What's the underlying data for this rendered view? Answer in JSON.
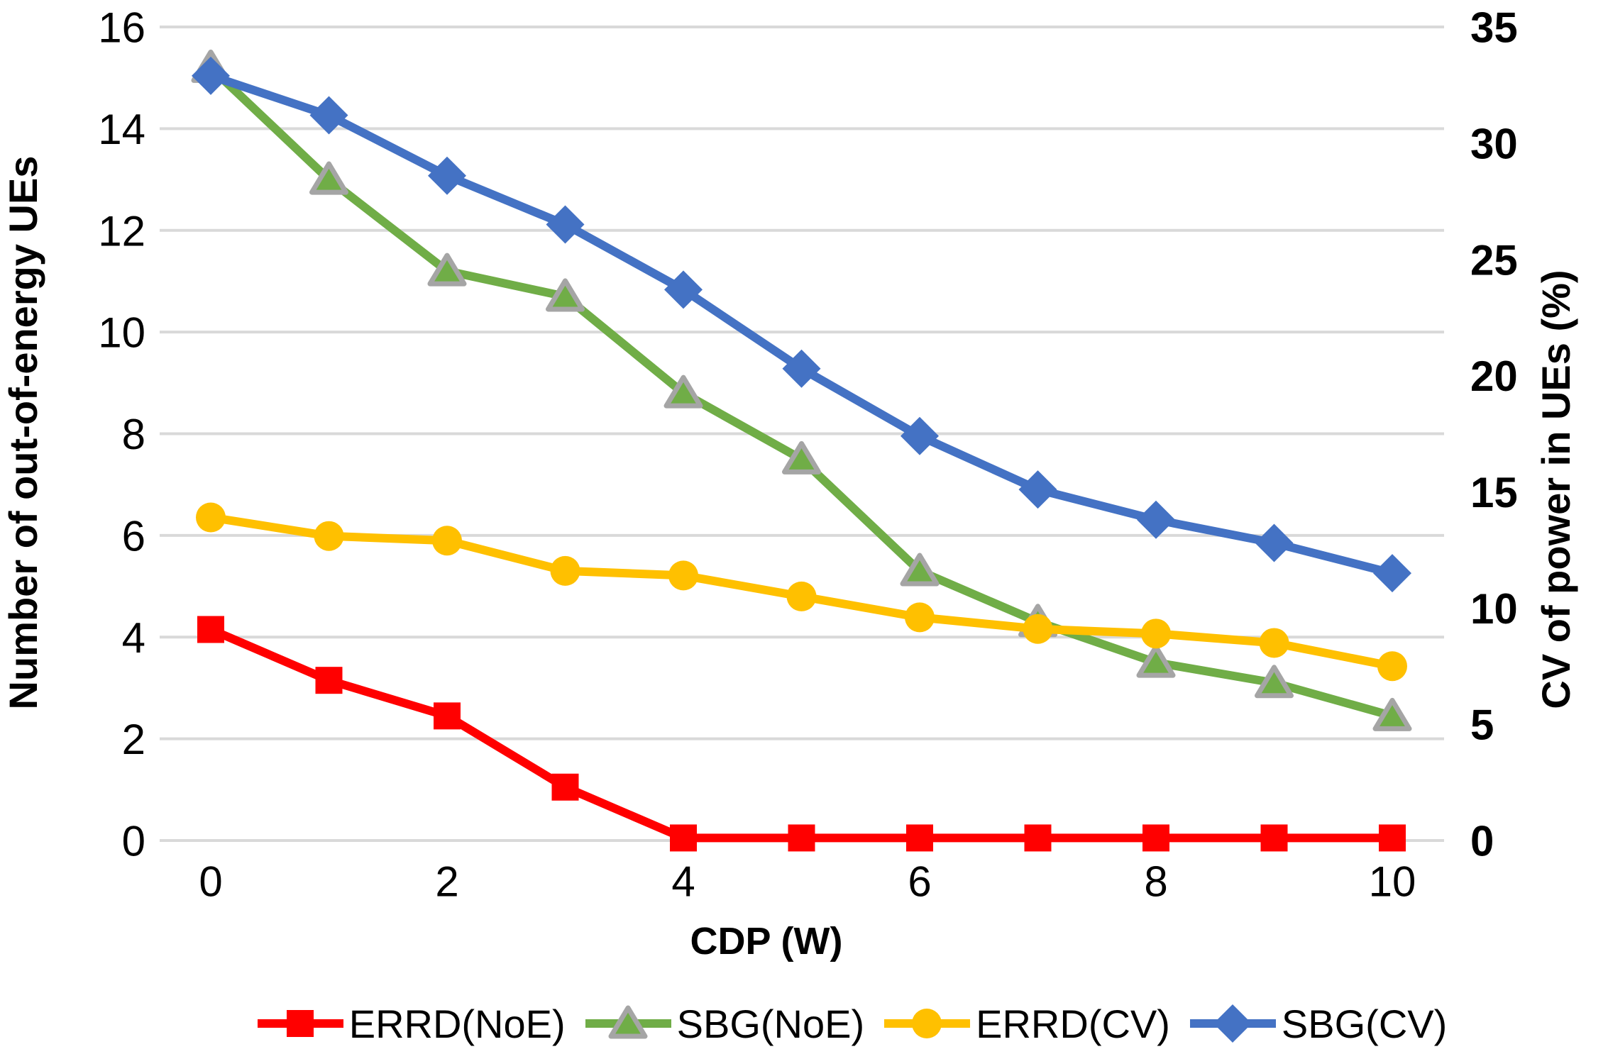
{
  "chart_data": {
    "type": "line",
    "title": "",
    "x": [
      0,
      1,
      2,
      3,
      4,
      5,
      6,
      7,
      8,
      9,
      10
    ],
    "xlabel": "CDP (W)",
    "x_tick_values": [
      0,
      2,
      4,
      6,
      8,
      10
    ],
    "left_axis": {
      "label": "Number of out-of-energy UEs",
      "min": 0,
      "max": 16,
      "tick_values": [
        16,
        14,
        12,
        10,
        8,
        6,
        4,
        2,
        0
      ]
    },
    "right_axis": {
      "label": "CV of power in UEs (%)",
      "min": 0,
      "max": 35,
      "tick_values": [
        35,
        30,
        25,
        20,
        15,
        10,
        5,
        0
      ]
    },
    "grid": "horizontal-only",
    "legend_position": "bottom-center",
    "gridline_color": "#D9D9D9",
    "background_color": "#FFFFFF",
    "text_color": "#000000",
    "series": [
      {
        "name": "ERRD(NoE)",
        "axis": "left",
        "color": "#FF0000",
        "marker": "square",
        "values": [
          4.15,
          3.15,
          2.45,
          1.05,
          0.05,
          0.05,
          0.05,
          0.05,
          0.05,
          0.05,
          0.05
        ]
      },
      {
        "name": "SBG(NoE)",
        "axis": "left",
        "color": "#70AD47",
        "marker": "triangle",
        "marker_stroke": "#A5A5A5",
        "values": [
          15.2,
          13.0,
          11.2,
          10.7,
          8.8,
          7.5,
          5.3,
          4.3,
          3.5,
          3.1,
          2.45
        ]
      },
      {
        "name": "ERRD(CV)",
        "axis": "right",
        "color": "#FFC000",
        "marker": "circle",
        "values": [
          13.9,
          13.1,
          12.9,
          11.6,
          11.4,
          10.5,
          9.6,
          9.1,
          8.9,
          8.5,
          7.5
        ]
      },
      {
        "name": "SBG(CV)",
        "axis": "right",
        "color": "#4472C4",
        "marker": "diamond",
        "values": [
          32.9,
          31.2,
          28.6,
          26.5,
          23.7,
          20.3,
          17.4,
          15.1,
          13.8,
          12.8,
          11.5
        ]
      }
    ]
  }
}
